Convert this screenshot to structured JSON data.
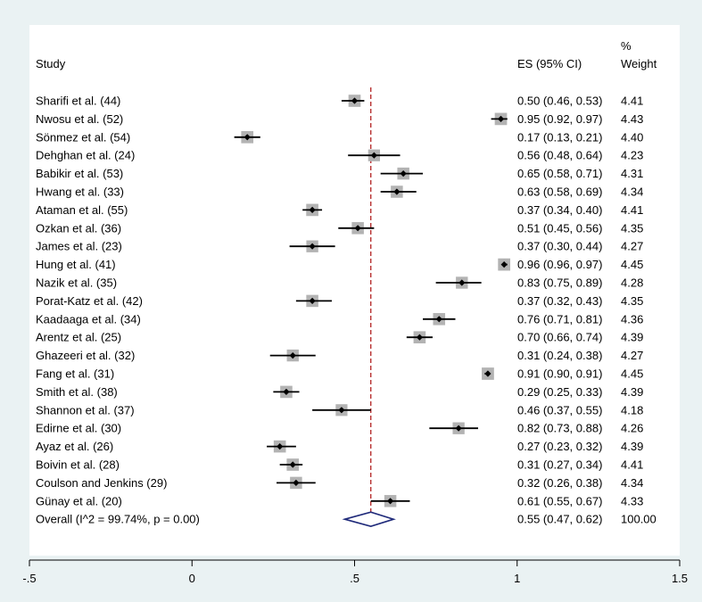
{
  "chart_data": {
    "type": "forest",
    "headers": {
      "study": "Study",
      "es": "ES (95% CI)",
      "weight_line1": "%",
      "weight_line2": "Weight"
    },
    "studies": [
      {
        "label": "Sharifi et al. (44)",
        "es": 0.5,
        "lo": 0.46,
        "hi": 0.53,
        "ci_text": "0.50 (0.46, 0.53)",
        "weight": "4.41"
      },
      {
        "label": "Nwosu et al. (52)",
        "es": 0.95,
        "lo": 0.92,
        "hi": 0.97,
        "ci_text": "0.95 (0.92, 0.97)",
        "weight": "4.43"
      },
      {
        "label": "Sönmez et al. (54)",
        "es": 0.17,
        "lo": 0.13,
        "hi": 0.21,
        "ci_text": "0.17 (0.13, 0.21)",
        "weight": "4.40"
      },
      {
        "label": "Dehghan et al. (24)",
        "es": 0.56,
        "lo": 0.48,
        "hi": 0.64,
        "ci_text": "0.56 (0.48, 0.64)",
        "weight": "4.23"
      },
      {
        "label": "Babikir et al. (53)",
        "es": 0.65,
        "lo": 0.58,
        "hi": 0.71,
        "ci_text": "0.65 (0.58, 0.71)",
        "weight": "4.31"
      },
      {
        "label": "Hwang et al. (33)",
        "es": 0.63,
        "lo": 0.58,
        "hi": 0.69,
        "ci_text": "0.63 (0.58, 0.69)",
        "weight": "4.34"
      },
      {
        "label": "Ataman et al. (55)",
        "es": 0.37,
        "lo": 0.34,
        "hi": 0.4,
        "ci_text": "0.37 (0.34, 0.40)",
        "weight": "4.41"
      },
      {
        "label": "Ozkan et al. (36)",
        "es": 0.51,
        "lo": 0.45,
        "hi": 0.56,
        "ci_text": "0.51 (0.45, 0.56)",
        "weight": "4.35"
      },
      {
        "label": "James et al. (23)",
        "es": 0.37,
        "lo": 0.3,
        "hi": 0.44,
        "ci_text": "0.37 (0.30, 0.44)",
        "weight": "4.27"
      },
      {
        "label": "Hung et al. (41)",
        "es": 0.96,
        "lo": 0.96,
        "hi": 0.97,
        "ci_text": "0.96 (0.96, 0.97)",
        "weight": "4.45"
      },
      {
        "label": "Nazik et al. (35)",
        "es": 0.83,
        "lo": 0.75,
        "hi": 0.89,
        "ci_text": "0.83 (0.75, 0.89)",
        "weight": "4.28"
      },
      {
        "label": "Porat-Katz et al. (42)",
        "es": 0.37,
        "lo": 0.32,
        "hi": 0.43,
        "ci_text": "0.37 (0.32, 0.43)",
        "weight": "4.35"
      },
      {
        "label": "Kaadaaga et al. (34)",
        "es": 0.76,
        "lo": 0.71,
        "hi": 0.81,
        "ci_text": "0.76 (0.71, 0.81)",
        "weight": "4.36"
      },
      {
        "label": "Arentz et al. (25)",
        "es": 0.7,
        "lo": 0.66,
        "hi": 0.74,
        "ci_text": "0.70 (0.66, 0.74)",
        "weight": "4.39"
      },
      {
        "label": "Ghazeeri et al. (32)",
        "es": 0.31,
        "lo": 0.24,
        "hi": 0.38,
        "ci_text": "0.31 (0.24, 0.38)",
        "weight": "4.27"
      },
      {
        "label": "Fang et al. (31)",
        "es": 0.91,
        "lo": 0.9,
        "hi": 0.91,
        "ci_text": "0.91 (0.90, 0.91)",
        "weight": "4.45"
      },
      {
        "label": "Smith et al. (38)",
        "es": 0.29,
        "lo": 0.25,
        "hi": 0.33,
        "ci_text": "0.29 (0.25, 0.33)",
        "weight": "4.39"
      },
      {
        "label": "Shannon et al. (37)",
        "es": 0.46,
        "lo": 0.37,
        "hi": 0.55,
        "ci_text": "0.46 (0.37, 0.55)",
        "weight": "4.18"
      },
      {
        "label": "Edirne et al. (30)",
        "es": 0.82,
        "lo": 0.73,
        "hi": 0.88,
        "ci_text": "0.82 (0.73, 0.88)",
        "weight": "4.26"
      },
      {
        "label": "Ayaz et al. (26)",
        "es": 0.27,
        "lo": 0.23,
        "hi": 0.32,
        "ci_text": "0.27 (0.23, 0.32)",
        "weight": "4.39"
      },
      {
        "label": "Boivin et al. (28)",
        "es": 0.31,
        "lo": 0.27,
        "hi": 0.34,
        "ci_text": "0.31 (0.27, 0.34)",
        "weight": "4.41"
      },
      {
        "label": "Coulson and Jenkins (29)",
        "es": 0.32,
        "lo": 0.26,
        "hi": 0.38,
        "ci_text": "0.32 (0.26, 0.38)",
        "weight": "4.34"
      },
      {
        "label": "Günay et al. (20)",
        "es": 0.61,
        "lo": 0.55,
        "hi": 0.67,
        "ci_text": "0.61 (0.55, 0.67)",
        "weight": "4.33"
      }
    ],
    "overall": {
      "label": "Overall  (I^2 = 99.74%, p = 0.00)",
      "es": 0.55,
      "lo": 0.47,
      "hi": 0.62,
      "ci_text": "0.55 (0.47, 0.62)",
      "weight": "100.00"
    },
    "xaxis": {
      "min": -0.5,
      "max": 1.5,
      "ticks": [
        -0.5,
        0,
        0.5,
        1,
        1.5
      ],
      "tick_labels": [
        "-.5",
        "0",
        ".5",
        "1",
        "1.5"
      ]
    },
    "reference_line": 0.55,
    "colors": {
      "background": "#eaf2f3",
      "panel": "#ffffff",
      "marker": "#000000",
      "weight_box": "#b3b3b3",
      "ref_line": "#b22222",
      "overall_diamond": "#1f2a7a",
      "text": "#000000"
    }
  }
}
